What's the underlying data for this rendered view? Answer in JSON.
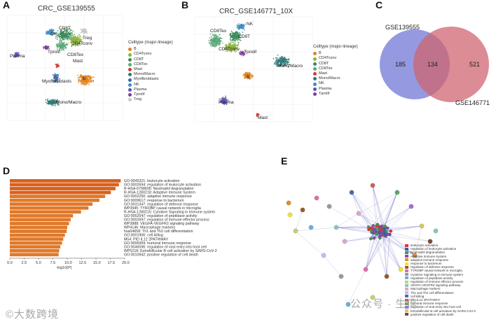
{
  "panels": {
    "a": {
      "letter": "A",
      "title": "CRC_GSE139555",
      "legend_title": "Celltype (major-lineage)",
      "legend": [
        {
          "name": "B",
          "color": "#e0821e"
        },
        {
          "name": "CD4Tconv",
          "color": "#8db33e"
        },
        {
          "name": "CD8T",
          "color": "#3e8c5c"
        },
        {
          "name": "CD8Tex",
          "color": "#5aa878"
        },
        {
          "name": "Mast",
          "color": "#d33a3a"
        },
        {
          "name": "Mono/Macro",
          "color": "#2f7a78"
        },
        {
          "name": "Myofibroblasts",
          "color": "#3c6aa8"
        },
        {
          "name": "NK",
          "color": "#3a8fc4"
        },
        {
          "name": "Plasma",
          "color": "#5b57b0"
        },
        {
          "name": "Tprolif",
          "color": "#7a3fa0"
        },
        {
          "name": "Treg",
          "color": "#c9c9c9"
        }
      ],
      "cluster_labels": [
        "NK",
        "CD8T",
        "CD4Tconv",
        "Treg",
        "CD8Tex",
        "Tprolif",
        "Plasma",
        "Mast",
        "B",
        "Myofibroblasts",
        "Mono/Macro"
      ]
    },
    "b": {
      "letter": "B",
      "title": "CRC_GSE146771_10X",
      "legend_title": "Celltype (major-lineage)",
      "legend": [
        {
          "name": "B",
          "color": "#e0821e"
        },
        {
          "name": "CD4Tconv",
          "color": "#8db33e"
        },
        {
          "name": "CD8T",
          "color": "#3e8c5c"
        },
        {
          "name": "CD8Tex",
          "color": "#5aa878"
        },
        {
          "name": "Mast",
          "color": "#d33a3a"
        },
        {
          "name": "Mono/Macro",
          "color": "#2f7a78"
        },
        {
          "name": "NK",
          "color": "#3a8fc4"
        },
        {
          "name": "Plasma",
          "color": "#5b57b0"
        },
        {
          "name": "Tprolif",
          "color": "#7a3fa0"
        }
      ],
      "cluster_labels": [
        "NK",
        "CD8Tex",
        "CD8T",
        "CD4Tconv",
        "Tprolif",
        "Mono/Macro",
        "B",
        "Plasma",
        "Mast"
      ]
    },
    "c": {
      "letter": "C"
    },
    "d": {
      "letter": "D"
    },
    "e": {
      "letter": "E"
    }
  },
  "chart_data": [
    {
      "type": "venn",
      "sets": [
        {
          "name": "GSE139555",
          "color": "#7a7fd8",
          "only": 185
        },
        {
          "name": "GSE146771",
          "color": "#cf6670",
          "only": 521
        }
      ],
      "intersection": 134
    },
    {
      "type": "bar",
      "orientation": "horizontal",
      "xlabel": "-log10(P)",
      "xlim": [
        0,
        20
      ],
      "xticks": [
        "0.0",
        "2.5",
        "5.0",
        "7.5",
        "10.0",
        "12.5",
        "15.0",
        "17.5",
        "20.0"
      ],
      "categories": [
        "GO:0045321: leukocyte activation",
        "GO:0002694: regulation of leukocyte activation",
        "R-HSA-6798695: Neutrophil degranulation",
        "R-HSA-1280218: Adaptive Immune System",
        "GO:0002250: adaptive immune response",
        "GO:0009617: response to bacterium",
        "GO:0031347: regulation of defense response",
        "WP3945: TYROBP causal network in microglia",
        "R-HSA-1280215: Cytokine Signaling in Immune system",
        "GO:0052547: regulation of peptidase activity",
        "GO:0002697: regulation of immune effector process",
        "WP3888: VEGFA-VEGFR2 signaling pathway",
        "WP4146: Macrophage markers",
        "hsa04658: Th1 and Th2 cell differentiation",
        "GO:0001906: cell killing",
        "M54: PID IL12 2PATHWAY",
        "GO:0006959: humoral immune response",
        "GO:0046596: regulation of viral entry into host cell",
        "WP5218: Extrafollicular B cell activation by SARS-CoV-2",
        "GO:0010942: positive regulation of cell death"
      ],
      "values": [
        19.3,
        19.0,
        18.4,
        17.6,
        16.6,
        15.6,
        14.4,
        13.7,
        12.4,
        11.0,
        10.6,
        10.3,
        10.0,
        9.9,
        9.6,
        9.3,
        9.1,
        8.8,
        8.6,
        8.5
      ]
    },
    {
      "type": "network",
      "legend": [
        {
          "name": "leukocyte activation",
          "color": "#e0312f"
        },
        {
          "name": "regulation of leukocyte activation",
          "color": "#3a5bb0"
        },
        {
          "name": "Neutrophil degranulation",
          "color": "#3f9a4a"
        },
        {
          "name": "Adaptive Immune System",
          "color": "#8a4aa8"
        },
        {
          "name": "adaptive immune response",
          "color": "#e88a2a"
        },
        {
          "name": "response to bacterium",
          "color": "#f2e23a"
        },
        {
          "name": "regulation of defense response",
          "color": "#9a5a2a"
        },
        {
          "name": "TYROBP causal network in microglia",
          "color": "#e06fa8"
        },
        {
          "name": "Cytokine Signaling in Immune system",
          "color": "#9a9a9a"
        },
        {
          "name": "regulation of peptidase activity",
          "color": "#6ab0d8"
        },
        {
          "name": "regulation of immune effector process",
          "color": "#b8d86a"
        },
        {
          "name": "VEGFA-VEGFR2 signaling pathway",
          "color": "#8ac8b8"
        },
        {
          "name": "Macrophage markers",
          "color": "#d8a8c8"
        },
        {
          "name": "Th1 and Th2 cell differentiation",
          "color": "#c8b8e8"
        },
        {
          "name": "cell killing",
          "color": "#4a6ab0"
        },
        {
          "name": "PID IL12 2PATHWAY",
          "color": "#d85a5a"
        },
        {
          "name": "humoral immune response",
          "color": "#5aa85a"
        },
        {
          "name": "regulation of viral entry into host cell",
          "color": "#a86ad8"
        },
        {
          "name": "Extrafollicular B cell activation by SARS-CoV-2",
          "color": "#d8c85a"
        },
        {
          "name": "positive regulation of cell death",
          "color": "#7a4a3a"
        }
      ]
    }
  ],
  "watermarks": {
    "left": "©大数跨境",
    "right": "公众号 · 生信"
  }
}
